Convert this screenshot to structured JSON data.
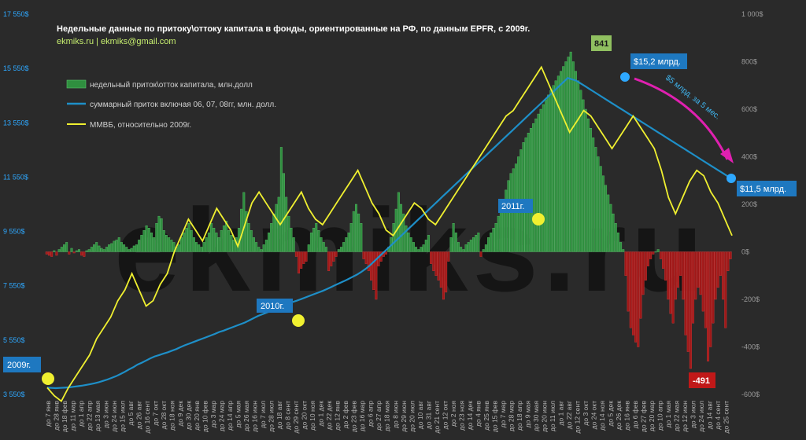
{
  "chart_data": {
    "type": "bar+line",
    "title": "Недельные данные  по притоку\\оттоку  капитала  в фонды, ориентированные  на РФ, по данным EPFR, с 2009г.",
    "subtitle": "ekmiks.ru  |  ekmiks@gmail.com",
    "watermark": "ekmiks.ru",
    "left_axis": {
      "ticks": [
        "17 550$",
        "15 550$",
        "13 550$",
        "11 550$",
        "9 550$",
        "7 550$",
        "5 550$",
        "3 550$"
      ],
      "values": [
        17550,
        15550,
        13550,
        11550,
        9550,
        7550,
        5550,
        3550
      ],
      "ylim": [
        3550,
        17550
      ],
      "color": "#2ea8ff"
    },
    "right_axis": {
      "ticks": [
        "1 000$",
        "800$",
        "600$",
        "400$",
        "200$",
        "0$",
        "-200$",
        "-400$",
        "-600$"
      ],
      "values": [
        1000,
        800,
        600,
        400,
        200,
        0,
        -200,
        -400,
        -600
      ],
      "ylim": [
        -600,
        1000
      ]
    },
    "x_ticks": [
      "до 7 янв",
      "до 28 янв",
      "до 18 фев",
      "до 11 мар",
      "до 1 апр",
      "до 22 апр",
      "до 13 мая",
      "до 3 июн",
      "до 24 июн",
      "до 15 июл",
      "до 5 авг",
      "до 26 авг",
      "до 16 сент",
      "до 7 окт",
      "до 28 окт",
      "до 18 ноя",
      "до 9 дек",
      "до 30 дек",
      "до 20 янв",
      "до 10 фев",
      "до 3 мар",
      "до 24 мар",
      "до 14 апр",
      "до 5 мая",
      "до 26 мая",
      "до 16 июн",
      "до 7 июл",
      "до 28 июл",
      "до 18 авг",
      "до 8 сент",
      "до 29 сент",
      "до 20 окт",
      "до 10 ноя",
      "до 1 дек",
      "до 22 дек",
      "до 12 янв",
      "до 2 фев",
      "до 23 фев",
      "до 16 мар",
      "до 6 апр",
      "до 27 апр",
      "до 18 мая",
      "до 8 июн",
      "до 29 июн",
      "до 20 июл",
      "до 10 авг",
      "до 31 авг",
      "до 21 сент",
      "до 12 окт",
      "до 2 ноя",
      "до 23 ноя",
      "до 14 дек",
      "до 4 янв",
      "до 25 янв",
      "до 15 фев",
      "до 7 мар",
      "до 28 мар",
      "до 18 апр",
      "до 9 мая",
      "до 30 мая",
      "до 20 июн",
      "до 11 июл",
      "до 1 авг",
      "до 22 авг",
      "до 12 сент",
      "до 3 окт",
      "до 24 окт",
      "до 14 ноя",
      "до 5 дек",
      "до 26 дек",
      "до 16 янв",
      "до 6 фев",
      "до 27 фев",
      "до 20 мар",
      "до 10 апр",
      "до 1 мая",
      "до 22 мая",
      "до 12 июн",
      "до 3 июл",
      "до 24 июл",
      "до 14 авг",
      "до 4 сент",
      "до 25 сент"
    ],
    "legend": [
      {
        "label": "недельный приток\\отток капитала, млн.долл",
        "color": "#2f8f3f",
        "kind": "bar"
      },
      {
        "label": "суммарный приток включая  06, 07, 08гг, млн. долл.",
        "color": "#1e8fc8",
        "kind": "line"
      },
      {
        "label": "ММВБ, относительно 2009г.",
        "color": "#f0f030",
        "kind": "line"
      }
    ],
    "colors": {
      "inflow": "#2f8f3f",
      "outflow": "#a01818",
      "cumulative": "#1e8fc8",
      "micex": "#f0f030",
      "callout_blue": "#1e78c0",
      "callout_green": "#90c060",
      "callout_red": "#c01818",
      "arrow": "#e020b0"
    },
    "annotations": {
      "y2009": "2009г.",
      "y2010": "2010г.",
      "y2011": "2011г.",
      "max_bar": "841",
      "min_bar": "-491",
      "peak_cum": "$15,2 млрд.",
      "end_cum": "$11,5 млрд.",
      "arrow_text": "$5 млрд. за 5 мес."
    },
    "weekly_flows": [
      -10,
      -15,
      -20,
      5,
      -15,
      10,
      20,
      30,
      40,
      -10,
      15,
      -5,
      5,
      10,
      -15,
      -20,
      5,
      10,
      20,
      30,
      40,
      25,
      15,
      10,
      20,
      30,
      35,
      45,
      50,
      60,
      40,
      30,
      20,
      10,
      15,
      25,
      30,
      50,
      70,
      90,
      110,
      100,
      80,
      60,
      120,
      150,
      140,
      90,
      70,
      60,
      50,
      40,
      20,
      30,
      60,
      80,
      100,
      120,
      90,
      60,
      40,
      30,
      20,
      40,
      60,
      80,
      120,
      100,
      80,
      60,
      90,
      110,
      130,
      90,
      70,
      50,
      60,
      100,
      180,
      250,
      170,
      120,
      90,
      60,
      40,
      20,
      10,
      30,
      50,
      80,
      120,
      160,
      200,
      230,
      440,
      330,
      230,
      150,
      100,
      60,
      -20,
      -90,
      -70,
      -50,
      -40,
      30,
      80,
      100,
      120,
      90,
      60,
      40,
      20,
      -80,
      -60,
      -40,
      -20,
      10,
      20,
      40,
      60,
      80,
      120,
      170,
      200,
      160,
      120,
      -30,
      -50,
      -80,
      -120,
      -160,
      -200,
      -60,
      -40,
      -20,
      -10,
      20,
      60,
      120,
      180,
      250,
      200,
      160,
      110,
      80,
      60,
      40,
      20,
      10,
      20,
      30,
      50,
      70,
      -50,
      -80,
      -100,
      -120,
      -150,
      -200,
      -170,
      -40,
      60,
      120,
      80,
      40,
      20,
      10,
      30,
      40,
      50,
      60,
      70,
      80,
      -20,
      10,
      30,
      60,
      80,
      100,
      120,
      150,
      190,
      220,
      260,
      300,
      330,
      350,
      370,
      400,
      430,
      460,
      480,
      500,
      520,
      540,
      560,
      580,
      600,
      620,
      640,
      660,
      680,
      700,
      720,
      740,
      760,
      780,
      800,
      820,
      841,
      800,
      760,
      720,
      680,
      640,
      600,
      560,
      520,
      480,
      440,
      400,
      360,
      320,
      280,
      240,
      200,
      160,
      120,
      80,
      40,
      10,
      -100,
      -250,
      -320,
      -350,
      -380,
      -400,
      -280,
      -180,
      -120,
      -60,
      -30,
      -10,
      0,
      10,
      -30,
      -70,
      -120,
      -200,
      -260,
      -300,
      -200,
      -150,
      -100,
      -200,
      -350,
      -420,
      -491,
      -300,
      -200,
      -150,
      -180,
      -250,
      -320,
      -460,
      -400,
      -300,
      -200,
      -150,
      -100,
      -200,
      -320,
      -80,
      -30
    ],
    "cumulative_usd_mln": [
      3800,
      3790,
      3780,
      3790,
      3800,
      3810,
      3830,
      3850,
      3870,
      3900,
      3930,
      3960,
      4000,
      4050,
      4100,
      4160,
      4220,
      4300,
      4380,
      4470,
      4550,
      4650,
      4720,
      4800,
      4880,
      4950,
      5000,
      5050,
      5100,
      5160,
      5220,
      5290,
      5360,
      5420,
      5480,
      5540,
      5600,
      5660,
      5720,
      5780,
      5850,
      5900,
      5960,
      6020,
      6080,
      6140,
      6200,
      6280,
      6360,
      6440,
      6500,
      6560,
      6620,
      6690,
      6760,
      6830,
      6890,
      6950,
      7000,
      7060,
      7120,
      7180,
      7240,
      7300,
      7360,
      7430,
      7500,
      7580,
      7650,
      7720,
      7800,
      7880,
      7960,
      8060,
      8170,
      8300,
      8450,
      8600,
      8750,
      8900,
      9050,
      9200,
      9350,
      9500,
      9650,
      9800,
      9950,
      10100,
      10250,
      10400,
      10550,
      10700,
      10850,
      11000,
      11150,
      11300,
      11450,
      11600,
      11750,
      11900,
      12050,
      12200,
      12350,
      12500,
      12650,
      12800,
      12950,
      13100,
      13250,
      13400,
      13550,
      13700,
      13850,
      14000,
      14150,
      14300,
      14450,
      14600,
      14750,
      14900,
      15050,
      15200,
      15150,
      15100,
      15000,
      14900,
      14800,
      14700,
      14600,
      14500,
      14400,
      14300,
      14200,
      14100,
      14000,
      13900,
      13800,
      13700,
      13600,
      13500,
      13400,
      13300,
      13200,
      13100,
      13000,
      12900,
      12800,
      12700,
      12600,
      12500,
      12400,
      12300,
      12200,
      12100,
      12000,
      11900,
      11800,
      11700,
      11600,
      11500
    ],
    "micex_relative": [
      3800,
      3500,
      3300,
      3800,
      4200,
      4600,
      5000,
      5600,
      6000,
      6400,
      7000,
      7400,
      8000,
      7400,
      6800,
      7000,
      7600,
      8000,
      8800,
      9400,
      10000,
      9600,
      9200,
      9800,
      10400,
      10000,
      9600,
      9000,
      9800,
      10600,
      11000,
      10600,
      10200,
      9800,
      10200,
      10600,
      11000,
      10400,
      10000,
      9800,
      10200,
      10600,
      11000,
      11400,
      11800,
      11200,
      10600,
      10200,
      9600,
      9400,
      9800,
      10200,
      10600,
      10400,
      10000,
      9800,
      10200,
      10600,
      11000,
      11400,
      11800,
      12200,
      12600,
      13000,
      13400,
      13800,
      14000,
      14400,
      14800,
      15200,
      15600,
      15000,
      14400,
      13800,
      13200,
      13600,
      14000,
      13800,
      13400,
      13000,
      12600,
      13000,
      13400,
      13800,
      13400,
      13000,
      12600,
      11800,
      10800,
      10200,
      10800,
      11400,
      11800,
      11600,
      11000,
      10600,
      10000,
      9400
    ]
  }
}
